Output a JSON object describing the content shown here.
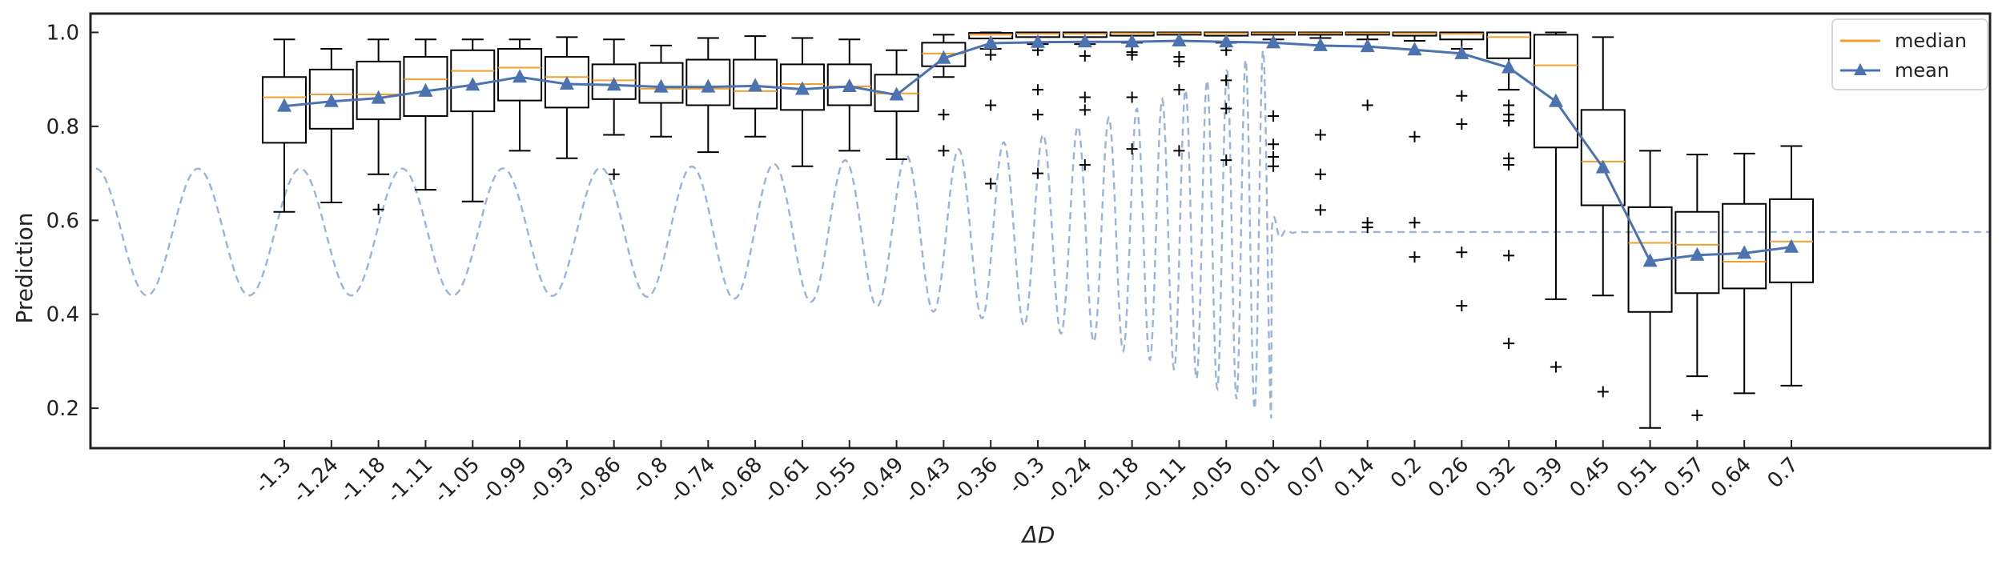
{
  "chart_data": {
    "type": "box",
    "title": "",
    "xlabel": "ΔD",
    "ylabel": "Prediction",
    "ylim": [
      0.115,
      1.04
    ],
    "yticks": [
      0.2,
      0.4,
      0.6,
      0.8,
      1.0
    ],
    "ytick_labels": [
      "0.2",
      "0.4",
      "0.6",
      "0.8",
      "1.0"
    ],
    "categories": [
      "-1.3",
      "-1.24",
      "-1.18",
      "-1.11",
      "-1.05",
      "-0.99",
      "-0.93",
      "-0.86",
      "-0.8",
      "-0.74",
      "-0.68",
      "-0.61",
      "-0.55",
      "-0.49",
      "-0.43",
      "-0.36",
      "-0.3",
      "-0.24",
      "-0.18",
      "-0.11",
      "-0.05",
      "0.01",
      "0.07",
      "0.14",
      "0.2",
      "0.26",
      "0.32",
      "0.39",
      "0.45",
      "0.51",
      "0.57",
      "0.64",
      "0.7"
    ],
    "boxes": [
      {
        "q1": 0.765,
        "median": 0.862,
        "q3": 0.905,
        "lo": 0.618,
        "hi": 0.985,
        "mean": 0.843,
        "outliers": []
      },
      {
        "q1": 0.795,
        "median": 0.868,
        "q3": 0.921,
        "lo": 0.638,
        "hi": 0.965,
        "mean": 0.853,
        "outliers": []
      },
      {
        "q1": 0.815,
        "median": 0.868,
        "q3": 0.938,
        "lo": 0.698,
        "hi": 0.985,
        "mean": 0.86,
        "outliers": [
          0.623
        ]
      },
      {
        "q1": 0.822,
        "median": 0.9,
        "q3": 0.948,
        "lo": 0.665,
        "hi": 0.985,
        "mean": 0.875,
        "outliers": []
      },
      {
        "q1": 0.832,
        "median": 0.918,
        "q3": 0.962,
        "lo": 0.64,
        "hi": 0.985,
        "mean": 0.888,
        "outliers": []
      },
      {
        "q1": 0.855,
        "median": 0.925,
        "q3": 0.965,
        "lo": 0.748,
        "hi": 0.985,
        "mean": 0.905,
        "outliers": []
      },
      {
        "q1": 0.84,
        "median": 0.905,
        "q3": 0.948,
        "lo": 0.732,
        "hi": 0.99,
        "mean": 0.89,
        "outliers": []
      },
      {
        "q1": 0.858,
        "median": 0.898,
        "q3": 0.932,
        "lo": 0.782,
        "hi": 0.985,
        "mean": 0.888,
        "outliers": [
          0.698
        ]
      },
      {
        "q1": 0.85,
        "median": 0.88,
        "q3": 0.935,
        "lo": 0.778,
        "hi": 0.972,
        "mean": 0.884,
        "outliers": []
      },
      {
        "q1": 0.845,
        "median": 0.88,
        "q3": 0.942,
        "lo": 0.745,
        "hi": 0.988,
        "mean": 0.884,
        "outliers": []
      },
      {
        "q1": 0.838,
        "median": 0.875,
        "q3": 0.942,
        "lo": 0.778,
        "hi": 0.992,
        "mean": 0.886,
        "outliers": []
      },
      {
        "q1": 0.835,
        "median": 0.89,
        "q3": 0.932,
        "lo": 0.715,
        "hi": 0.988,
        "mean": 0.879,
        "outliers": []
      },
      {
        "q1": 0.845,
        "median": 0.885,
        "q3": 0.932,
        "lo": 0.748,
        "hi": 0.985,
        "mean": 0.885,
        "outliers": []
      },
      {
        "q1": 0.832,
        "median": 0.87,
        "q3": 0.91,
        "lo": 0.73,
        "hi": 0.962,
        "mean": 0.867,
        "outliers": []
      },
      {
        "q1": 0.928,
        "median": 0.955,
        "q3": 0.978,
        "lo": 0.905,
        "hi": 0.995,
        "mean": 0.945,
        "outliers": [
          0.825,
          0.748
        ]
      },
      {
        "q1": 0.987,
        "median": 0.995,
        "q3": 0.999,
        "lo": 0.965,
        "hi": 1.0,
        "mean": 0.977,
        "outliers": [
          0.952,
          0.845,
          0.678
        ]
      },
      {
        "q1": 0.99,
        "median": 0.997,
        "q3": 1.0,
        "lo": 0.975,
        "hi": 1.0,
        "mean": 0.979,
        "outliers": [
          0.962,
          0.878,
          0.825,
          0.7
        ]
      },
      {
        "q1": 0.99,
        "median": 0.997,
        "q3": 1.0,
        "lo": 0.975,
        "hi": 1.0,
        "mean": 0.98,
        "outliers": [
          0.95,
          0.862,
          0.835,
          0.718
        ]
      },
      {
        "q1": 0.993,
        "median": 0.998,
        "q3": 1.0,
        "lo": 0.978,
        "hi": 1.0,
        "mean": 0.98,
        "outliers": [
          0.958,
          0.952,
          0.862,
          0.752
        ]
      },
      {
        "q1": 0.995,
        "median": 0.998,
        "q3": 1.0,
        "lo": 0.982,
        "hi": 1.0,
        "mean": 0.982,
        "outliers": [
          0.948,
          0.938,
          0.878,
          0.748
        ]
      },
      {
        "q1": 0.993,
        "median": 0.998,
        "q3": 1.0,
        "lo": 0.978,
        "hi": 1.0,
        "mean": 0.98,
        "outliers": [
          0.962,
          0.898,
          0.838,
          0.728
        ]
      },
      {
        "q1": 0.995,
        "median": 0.998,
        "q3": 1.0,
        "lo": 0.985,
        "hi": 1.0,
        "mean": 0.978,
        "outliers": [
          0.822,
          0.762,
          0.735,
          0.715
        ]
      },
      {
        "q1": 0.995,
        "median": 0.998,
        "q3": 1.0,
        "lo": 0.988,
        "hi": 1.0,
        "mean": 0.972,
        "outliers": [
          0.782,
          0.698,
          0.622
        ]
      },
      {
        "q1": 0.995,
        "median": 0.998,
        "q3": 1.0,
        "lo": 0.985,
        "hi": 1.0,
        "mean": 0.97,
        "outliers": [
          0.845,
          0.595,
          0.585
        ]
      },
      {
        "q1": 0.993,
        "median": 0.998,
        "q3": 1.0,
        "lo": 0.982,
        "hi": 1.0,
        "mean": 0.963,
        "outliers": [
          0.778,
          0.595,
          0.522
        ]
      },
      {
        "q1": 0.985,
        "median": 0.997,
        "q3": 1.0,
        "lo": 0.965,
        "hi": 1.0,
        "mean": 0.955,
        "outliers": [
          0.865,
          0.805,
          0.532,
          0.418
        ]
      },
      {
        "q1": 0.945,
        "median": 0.99,
        "q3": 1.0,
        "lo": 0.878,
        "hi": 1.0,
        "mean": 0.925,
        "outliers": [
          0.845,
          0.825,
          0.812,
          0.732,
          0.718,
          0.525,
          0.338
        ]
      },
      {
        "q1": 0.755,
        "median": 0.93,
        "q3": 0.995,
        "lo": 0.432,
        "hi": 1.0,
        "mean": 0.853,
        "outliers": [
          0.288
        ]
      },
      {
        "q1": 0.632,
        "median": 0.725,
        "q3": 0.835,
        "lo": 0.44,
        "hi": 0.99,
        "mean": 0.712,
        "outliers": [
          0.235
        ]
      },
      {
        "q1": 0.405,
        "median": 0.552,
        "q3": 0.628,
        "lo": 0.158,
        "hi": 0.748,
        "mean": 0.513,
        "outliers": []
      },
      {
        "q1": 0.445,
        "median": 0.548,
        "q3": 0.618,
        "lo": 0.268,
        "hi": 0.74,
        "mean": 0.526,
        "outliers": [
          0.185
        ]
      },
      {
        "q1": 0.455,
        "median": 0.512,
        "q3": 0.635,
        "lo": 0.232,
        "hi": 0.742,
        "mean": 0.53,
        "outliers": []
      },
      {
        "q1": 0.468,
        "median": 0.555,
        "q3": 0.645,
        "lo": 0.248,
        "hi": 0.758,
        "mean": 0.543,
        "outliers": []
      }
    ],
    "background_wave": {
      "style": "dashed",
      "baseline": 0.575,
      "x_start": -1.55,
      "x_end": 1.5,
      "x_converge": 0.01,
      "amplitude_start": 0.135,
      "amplitude_end": 0.4
    },
    "legend": {
      "position": "top-right",
      "items": [
        {
          "label": "median",
          "marker": "line"
        },
        {
          "label": "mean",
          "marker": "line-triangle"
        }
      ]
    },
    "colors": {
      "median": "#f0a030",
      "mean": "#4c72b0",
      "wave": "#9bb3d6",
      "box": "#000000"
    }
  }
}
